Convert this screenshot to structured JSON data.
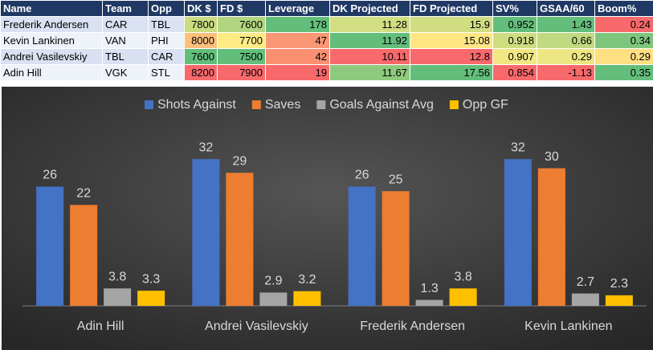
{
  "table": {
    "header": [
      "Name",
      "Team",
      "Opp",
      "DK $",
      "FD $",
      "Leverage",
      "DK Projected",
      "FD Projected",
      "SV%",
      "GSAA/60",
      "Boom%"
    ],
    "rows": [
      [
        "Frederik Andersen",
        "CAR",
        "TBL",
        7800,
        7600,
        178,
        11.28,
        15.9,
        0.952,
        1.43,
        0.24
      ],
      [
        "Kevin Lankinen",
        "VAN",
        "PHI",
        8000,
        7700,
        47,
        11.92,
        15.08,
        0.918,
        0.66,
        0.34
      ],
      [
        "Andrei Vasilevskiy",
        "TBL",
        "CAR",
        7600,
        7500,
        42,
        10.11,
        12.8,
        0.907,
        0.29,
        0.29
      ],
      [
        "Adin Hill",
        "VGK",
        "STL",
        8200,
        7900,
        19,
        11.67,
        17.56,
        0.854,
        -1.13,
        0.35
      ]
    ]
  },
  "chart_data": {
    "type": "bar",
    "categories": [
      "Adin Hill",
      "Andrei Vasilevskiy",
      "Frederik Andersen",
      "Kevin Lankinen"
    ],
    "series": [
      {
        "name": "Shots Against",
        "color": "#4472c4",
        "values": [
          26,
          32,
          26,
          32
        ]
      },
      {
        "name": "Saves",
        "color": "#ed7d31",
        "values": [
          22,
          29,
          25,
          30
        ]
      },
      {
        "name": "Goals Against Avg",
        "color": "#a5a5a5",
        "values": [
          3.8,
          2.9,
          1.3,
          2.7
        ]
      },
      {
        "name": "Opp GF",
        "color": "#ffc000",
        "values": [
          3.3,
          3.2,
          3.8,
          2.3
        ]
      }
    ],
    "ylim": [
      0,
      35
    ],
    "legend": "top"
  }
}
